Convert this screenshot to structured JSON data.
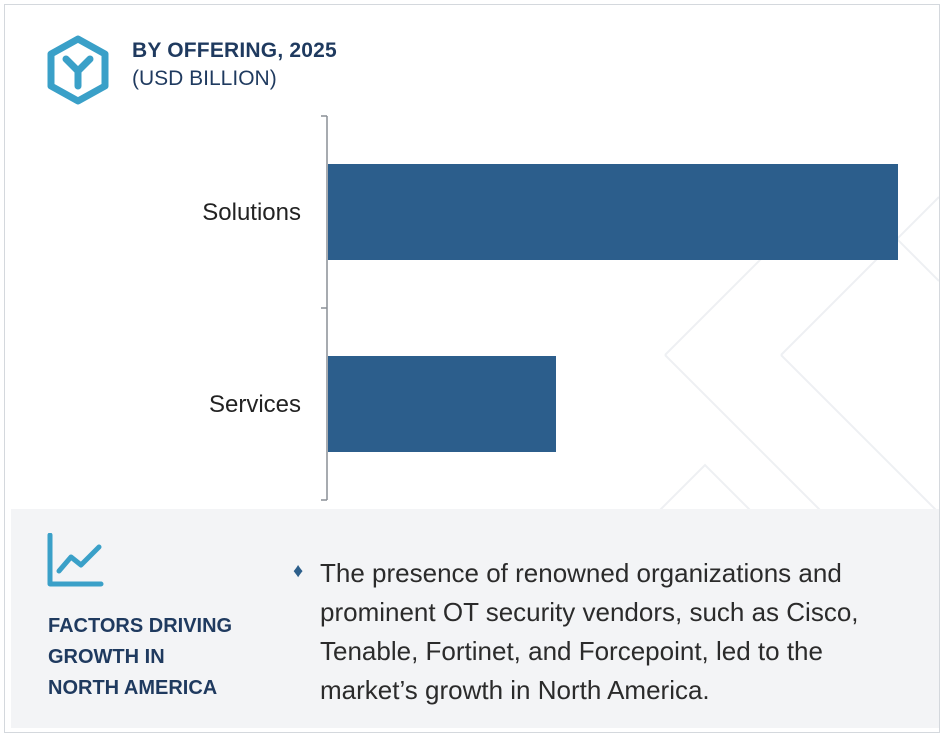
{
  "header": {
    "title": "BY OFFERING, 2025",
    "subtitle": "(USD BILLION)"
  },
  "colors": {
    "bar": "#2c5e8c",
    "accent": "#3aa0c8",
    "heading": "#1f3a5f",
    "footer_bg": "#f3f4f6"
  },
  "icons": {
    "header": "hexagon-logo-icon",
    "factors": "line-chart-trend-icon",
    "bullet": "diamond-bullet"
  },
  "chart_data": {
    "type": "bar",
    "orientation": "horizontal",
    "categories": [
      "Solutions",
      "Services"
    ],
    "values": [
      100,
      40
    ],
    "title": "BY OFFERING, 2025",
    "subtitle": "(USD BILLION)",
    "xlabel": "",
    "ylabel": "",
    "value_axis_shown": false,
    "grid": false
  },
  "factors": {
    "heading_lines": [
      "FACTORS DRIVING",
      "GROWTH IN",
      "NORTH AMERICA"
    ],
    "bullet_symbol": "♦",
    "text_lines": [
      "The presence of renowned organizations and",
      "prominent OT security vendors, such as Cisco,",
      "Tenable, Fortinet, and Forcepoint, led to the",
      "market’s growth in North America."
    ]
  }
}
